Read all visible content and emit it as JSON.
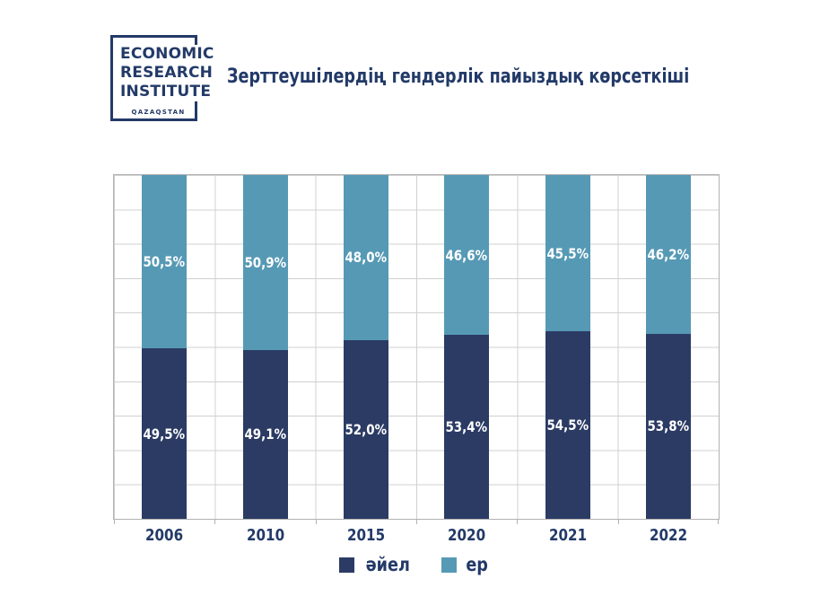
{
  "logo": {
    "line1": "ECONOMIC",
    "line2": "RESEARCH",
    "line3": "INSTITUTE",
    "country": "QAZAQSTAN"
  },
  "chart_data": {
    "type": "bar",
    "stacked": true,
    "title": "Зерттеушілердің гендерлік пайыздық көрсеткіші",
    "categories": [
      "2006",
      "2010",
      "2015",
      "2020",
      "2021",
      "2022"
    ],
    "series": [
      {
        "name": "әйел",
        "color": "#2B3B64",
        "values": [
          49.5,
          49.1,
          52.0,
          53.4,
          54.5,
          53.8
        ],
        "labels": [
          "49,5%",
          "49,1%",
          "52,0%",
          "53,4%",
          "54,5%",
          "53,8%"
        ]
      },
      {
        "name": "ер",
        "color": "#5699B5",
        "values": [
          50.5,
          50.9,
          48.0,
          46.6,
          45.5,
          46.2
        ],
        "labels": [
          "50,5%",
          "50,9%",
          "48,0%",
          "46,6%",
          "45,5%",
          "46,2%"
        ]
      }
    ],
    "xlabel": "",
    "ylabel": "",
    "ylim": [
      0,
      100
    ],
    "grid": true,
    "legend_position": "bottom",
    "colors": {
      "text_navy": "#233A68",
      "bar_navy": "#2B3B64",
      "bar_blue": "#5699B5",
      "gridline": "#d0d0d0",
      "axis_border": "#b2b2b2",
      "background": "#ffffff"
    }
  }
}
